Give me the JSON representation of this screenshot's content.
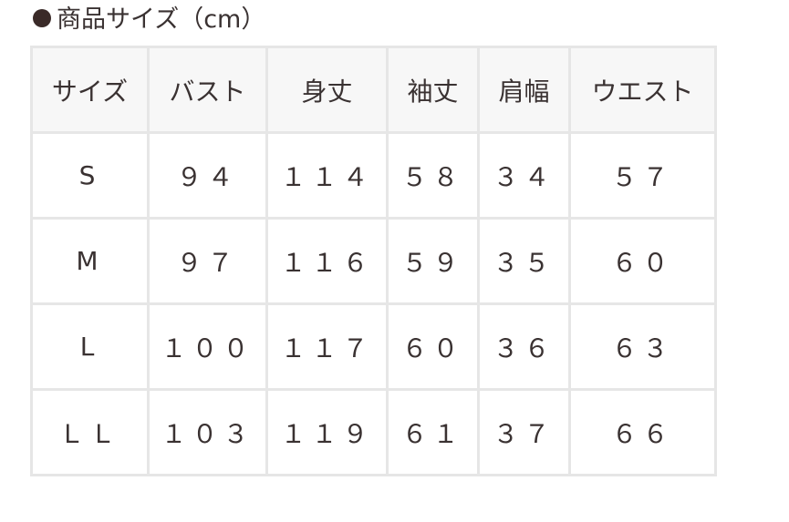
{
  "title": "商品サイズ（cm）",
  "table": {
    "headers": [
      "サイズ",
      "バスト",
      "身丈",
      "袖丈",
      "肩幅",
      "ウエスト"
    ],
    "rows": [
      [
        "S",
        "９４",
        "１１４",
        "５８",
        "３４",
        "５７"
      ],
      [
        "M",
        "９７",
        "１１６",
        "５９",
        "３５",
        "６０"
      ],
      [
        "L",
        "１００",
        "１１７",
        "６０",
        "３６",
        "６３"
      ],
      [
        "ＬＬ",
        "１０３",
        "１１９",
        "６１",
        "３７",
        "６６"
      ]
    ]
  }
}
